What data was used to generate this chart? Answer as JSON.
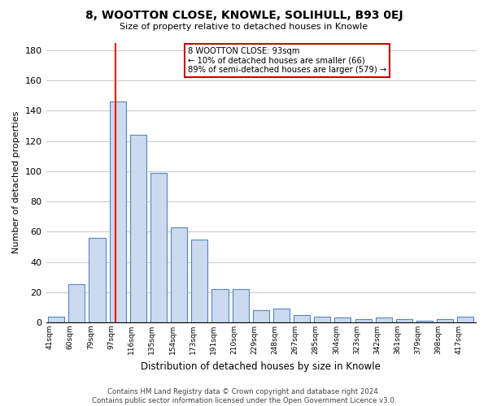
{
  "title": "8, WOOTTON CLOSE, KNOWLE, SOLIHULL, B93 0EJ",
  "subtitle": "Size of property relative to detached houses in Knowle",
  "xlabel": "Distribution of detached houses by size in Knowle",
  "ylabel": "Number of detached properties",
  "bin_labels": [
    "41sqm",
    "60sqm",
    "79sqm",
    "97sqm",
    "116sqm",
    "135sqm",
    "154sqm",
    "173sqm",
    "191sqm",
    "210sqm",
    "229sqm",
    "248sqm",
    "267sqm",
    "285sqm",
    "304sqm",
    "323sqm",
    "342sqm",
    "361sqm",
    "379sqm",
    "398sqm",
    "417sqm"
  ],
  "bar_heights": [
    4,
    25,
    56,
    146,
    124,
    99,
    63,
    55,
    22,
    22,
    8,
    9,
    5,
    4,
    3,
    2,
    3,
    2,
    1,
    2,
    4
  ],
  "bar_color": "#ccdaf0",
  "bar_edge_color": "#5585c0",
  "red_line_x": 3,
  "annotation_lines": [
    "8 WOOTTON CLOSE: 93sqm",
    "← 10% of detached houses are smaller (66)",
    "89% of semi-detached houses are larger (579) →"
  ],
  "annotation_box_color": "#ffffff",
  "annotation_box_edge": "#cc0000",
  "ylim": [
    0,
    185
  ],
  "yticks": [
    0,
    20,
    40,
    60,
    80,
    100,
    120,
    140,
    160,
    180
  ],
  "footer_line1": "Contains HM Land Registry data © Crown copyright and database right 2024.",
  "footer_line2": "Contains public sector information licensed under the Open Government Licence v3.0.",
  "background_color": "#ffffff",
  "grid_color": "#cccccc"
}
